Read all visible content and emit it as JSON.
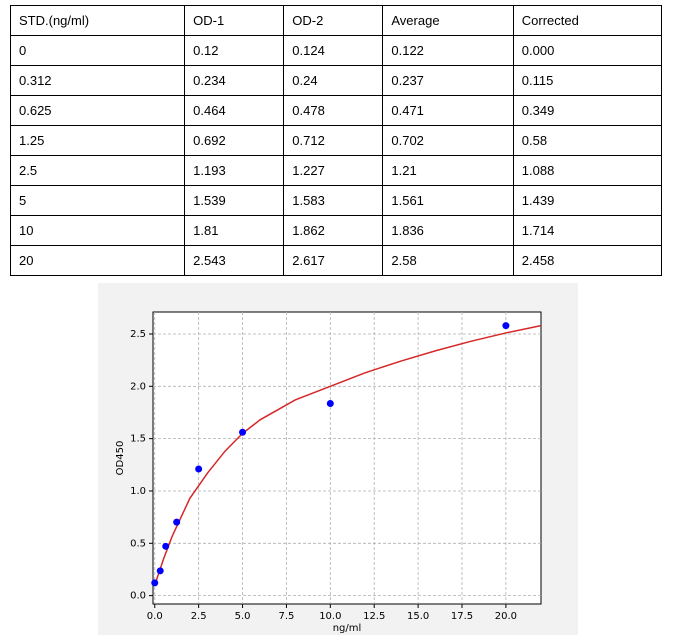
{
  "table": {
    "header": [
      "STD.(ng/ml)",
      "OD-1",
      "OD-2",
      "Average",
      "Corrected"
    ],
    "rows": [
      [
        "0",
        "0.12",
        "0.124",
        "0.122",
        "0.000"
      ],
      [
        "0.312",
        "0.234",
        "0.24",
        "0.237",
        "0.115"
      ],
      [
        "0.625",
        "0.464",
        "0.478",
        "0.471",
        "0.349"
      ],
      [
        "1.25",
        "0.692",
        "0.712",
        "0.702",
        "0.58"
      ],
      [
        "2.5",
        "1.193",
        "1.227",
        "1.21",
        "1.088"
      ],
      [
        "5",
        "1.539",
        "1.583",
        "1.561",
        "1.439"
      ],
      [
        "10",
        "1.81",
        "1.862",
        "1.836",
        "1.714"
      ],
      [
        "20",
        "2.543",
        "2.617",
        "2.58",
        "2.458"
      ]
    ]
  },
  "chart_data": {
    "type": "scatter",
    "x_label": "ng/ml",
    "y_label": "OD450",
    "xlim": [
      -0.1,
      22
    ],
    "ylim": [
      -0.08,
      2.71
    ],
    "grid": true,
    "xticks": [
      {
        "value": 0,
        "label": "0.0"
      },
      {
        "value": 2.5,
        "label": "2.5"
      },
      {
        "value": 5,
        "label": "5.0"
      },
      {
        "value": 7.5,
        "label": "7.5"
      },
      {
        "value": 10,
        "label": "10.0"
      },
      {
        "value": 12.5,
        "label": "12.5"
      },
      {
        "value": 15,
        "label": "15.0"
      },
      {
        "value": 17.5,
        "label": "17.5"
      },
      {
        "value": 20,
        "label": "20.0"
      }
    ],
    "yticks": [
      {
        "value": 0,
        "label": "0.0"
      },
      {
        "value": 0.5,
        "label": "0.5"
      },
      {
        "value": 1,
        "label": "1.0"
      },
      {
        "value": 1.5,
        "label": "1.5"
      },
      {
        "value": 2,
        "label": "2.0"
      },
      {
        "value": 2.5,
        "label": "2.5"
      }
    ],
    "series": [
      {
        "type": "scatter",
        "color": "#0000ff",
        "x": [
          0,
          0.312,
          0.625,
          1.25,
          2.5,
          5,
          10,
          20
        ],
        "values": [
          0.122,
          0.237,
          0.471,
          0.702,
          1.21,
          1.561,
          1.836,
          2.58
        ]
      },
      {
        "type": "line",
        "color": "#d62728",
        "x": [
          0,
          0.5,
          1,
          2,
          3,
          4,
          5,
          6,
          8,
          10,
          12,
          14,
          16,
          18,
          20,
          22
        ],
        "values": [
          0.1,
          0.35,
          0.57,
          0.93,
          1.17,
          1.38,
          1.55,
          1.68,
          1.87,
          2.0,
          2.13,
          2.24,
          2.34,
          2.43,
          2.51,
          2.58
        ]
      }
    ]
  }
}
